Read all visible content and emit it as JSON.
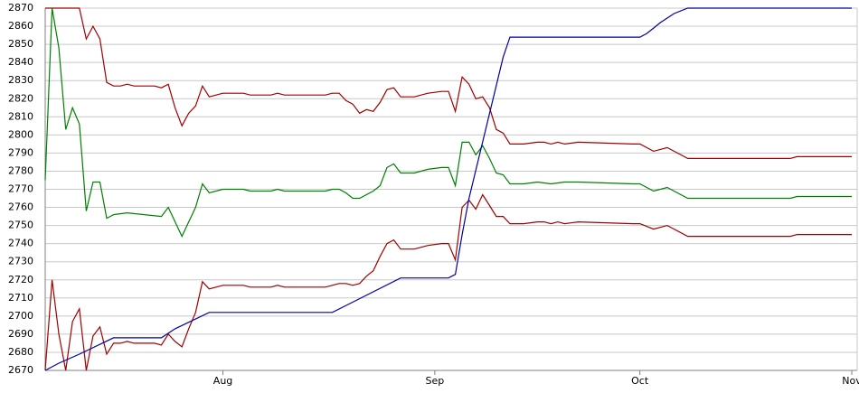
{
  "chart_data": {
    "type": "line",
    "xlim": [
      0,
      118
    ],
    "xticks": [
      {
        "value": 26,
        "label": "Aug"
      },
      {
        "value": 57,
        "label": "Sep"
      },
      {
        "value": 87,
        "label": "Oct"
      },
      {
        "value": 118,
        "label": "Nov"
      }
    ],
    "ylim": [
      2670,
      2870
    ],
    "yticks": [
      2670,
      2680,
      2690,
      2700,
      2710,
      2720,
      2730,
      2740,
      2750,
      2760,
      2770,
      2780,
      2790,
      2800,
      2810,
      2820,
      2830,
      2840,
      2850,
      2860,
      2870
    ],
    "grid": true,
    "series": [
      {
        "color": "#a00000",
        "x": [
          0,
          5,
          6,
          7,
          8,
          9,
          10,
          11,
          12,
          13,
          16,
          17,
          18,
          19,
          20,
          21,
          22,
          23,
          24,
          26,
          29,
          30,
          33,
          34,
          35,
          41,
          42,
          43,
          44,
          45,
          46,
          47,
          48,
          49,
          50,
          51,
          52,
          54,
          56,
          58,
          59,
          60,
          61,
          62,
          63,
          64,
          65,
          66,
          67,
          68,
          70,
          72,
          73,
          74,
          75,
          76,
          78,
          86,
          87,
          89,
          91,
          92,
          94,
          109,
          110,
          118
        ],
        "values": [
          2870,
          2870,
          2853,
          2860,
          2853,
          2829,
          2827,
          2827,
          2828,
          2827,
          2827,
          2826,
          2828,
          2815,
          2805,
          2812,
          2816,
          2827,
          2821,
          2823,
          2823,
          2822,
          2822,
          2823,
          2822,
          2822,
          2823,
          2823,
          2819,
          2817,
          2812,
          2814,
          2813,
          2818,
          2825,
          2826,
          2821,
          2821,
          2823,
          2824,
          2824,
          2813,
          2832,
          2828,
          2820,
          2821,
          2815,
          2803,
          2801,
          2795,
          2795,
          2796,
          2796,
          2795,
          2796,
          2795,
          2796,
          2795,
          2795,
          2791,
          2793,
          2791,
          2787,
          2787,
          2788,
          2788
        ]
      },
      {
        "color": "#008000",
        "x": [
          0,
          1,
          2,
          3,
          4,
          5,
          6,
          7,
          8,
          9,
          10,
          12,
          17,
          18,
          20,
          22,
          23,
          24,
          26,
          29,
          30,
          33,
          34,
          35,
          41,
          42,
          43,
          44,
          45,
          46,
          48,
          49,
          50,
          51,
          52,
          54,
          56,
          58,
          59,
          60,
          61,
          62,
          63,
          64,
          65,
          66,
          67,
          68,
          70,
          72,
          74,
          76,
          78,
          86,
          87,
          89,
          91,
          92,
          94,
          109,
          110,
          118
        ],
        "values": [
          2775,
          2870,
          2848,
          2803,
          2815,
          2806,
          2758,
          2774,
          2774,
          2754,
          2756,
          2757,
          2755,
          2760,
          2744,
          2760,
          2773,
          2768,
          2770,
          2770,
          2769,
          2769,
          2770,
          2769,
          2769,
          2770,
          2770,
          2768,
          2765,
          2765,
          2769,
          2772,
          2782,
          2784,
          2779,
          2779,
          2781,
          2782,
          2782,
          2772,
          2796,
          2796,
          2789,
          2794,
          2787,
          2779,
          2778,
          2773,
          2773,
          2774,
          2773,
          2774,
          2774,
          2773,
          2773,
          2769,
          2771,
          2769,
          2765,
          2765,
          2766,
          2766
        ]
      },
      {
        "color": "#a00000",
        "x": [
          0,
          1,
          2,
          3,
          4,
          5,
          6,
          7,
          8,
          9,
          10,
          11,
          12,
          13,
          16,
          17,
          18,
          19,
          20,
          21,
          22,
          23,
          24,
          26,
          29,
          30,
          33,
          34,
          35,
          41,
          42,
          43,
          44,
          45,
          46,
          47,
          48,
          49,
          50,
          51,
          52,
          54,
          56,
          58,
          59,
          60,
          61,
          62,
          63,
          64,
          65,
          66,
          67,
          68,
          70,
          72,
          73,
          74,
          75,
          76,
          78,
          86,
          87,
          89,
          91,
          92,
          94,
          109,
          110,
          118
        ],
        "values": [
          2670,
          2720,
          2690,
          2670,
          2697,
          2704,
          2670,
          2689,
          2694,
          2679,
          2685,
          2685,
          2686,
          2685,
          2685,
          2684,
          2690,
          2686,
          2683,
          2693,
          2702,
          2719,
          2715,
          2717,
          2717,
          2716,
          2716,
          2717,
          2716,
          2716,
          2717,
          2718,
          2718,
          2717,
          2718,
          2722,
          2725,
          2733,
          2740,
          2742,
          2737,
          2737,
          2739,
          2740,
          2740,
          2731,
          2760,
          2764,
          2759,
          2767,
          2761,
          2755,
          2755,
          2751,
          2751,
          2752,
          2752,
          2751,
          2752,
          2751,
          2752,
          2751,
          2751,
          2748,
          2750,
          2748,
          2744,
          2744,
          2745,
          2745
        ]
      },
      {
        "color": "#0000a0",
        "x": [
          0,
          2,
          5,
          10,
          17,
          19,
          24,
          42,
          52,
          59,
          60,
          61,
          62,
          67,
          68,
          87,
          88,
          89,
          90,
          92,
          94,
          118
        ],
        "values": [
          2670,
          2674,
          2679,
          2688,
          2688,
          2693,
          2702,
          2702,
          2721,
          2721,
          2723,
          2745,
          2765,
          2843,
          2854,
          2854,
          2856,
          2859,
          2862,
          2867,
          2870,
          2870
        ]
      }
    ]
  }
}
